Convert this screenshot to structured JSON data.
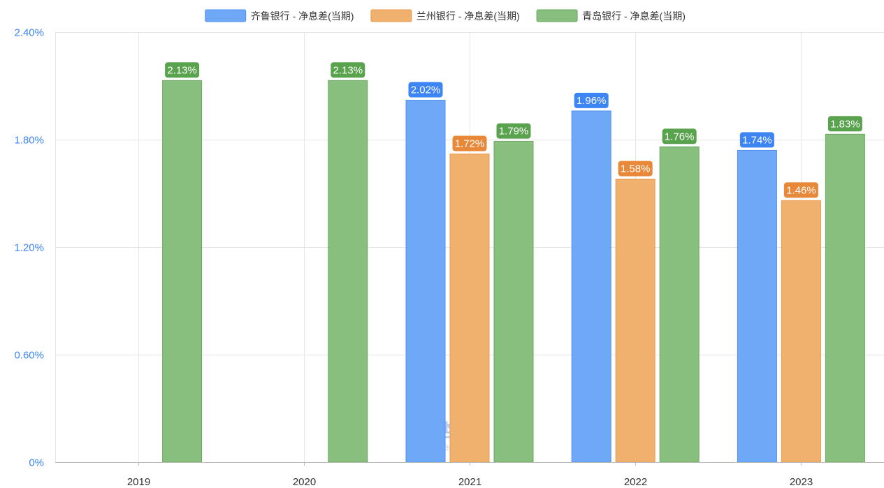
{
  "chart_data": {
    "type": "bar",
    "categories": [
      "2019",
      "2020",
      "2021",
      "2022",
      "2023"
    ],
    "series": [
      {
        "name": "齐鲁银行 - 净息差(当期)",
        "color": "#6fa8f7",
        "border": "#4f8ff0",
        "label_bg": "#3d84f5",
        "values": [
          null,
          null,
          2.02,
          1.96,
          1.74
        ],
        "labels": [
          null,
          null,
          "2.02%",
          "1.96%",
          "1.74%"
        ]
      },
      {
        "name": "兰州银行 - 净息差(当期)",
        "color": "#f0b06e",
        "border": "#e89a4c",
        "label_bg": "#e8893a",
        "values": [
          null,
          null,
          1.72,
          1.58,
          1.46
        ],
        "labels": [
          null,
          null,
          "1.72%",
          "1.58%",
          "1.46%"
        ]
      },
      {
        "name": "青岛银行 - 净息差(当期)",
        "color": "#88bf7f",
        "border": "#6aaa5f",
        "label_bg": "#5aa34e",
        "values": [
          2.13,
          2.13,
          1.79,
          1.76,
          1.83
        ],
        "labels": [
          "2.13%",
          "2.13%",
          "1.79%",
          "1.76%",
          "1.83%"
        ]
      }
    ],
    "ylim": [
      0,
      2.4
    ],
    "yticks": [
      {
        "value": 0,
        "label": "0%"
      },
      {
        "value": 0.6,
        "label": "0.60%"
      },
      {
        "value": 1.2,
        "label": "1.20%"
      },
      {
        "value": 1.8,
        "label": "1.80%"
      },
      {
        "value": 2.4,
        "label": "2.40%"
      }
    ],
    "legend_position": "top-center",
    "grid": true,
    "watermark": {
      "text": "理杏仁",
      "subtext": "lixinger.com"
    }
  }
}
